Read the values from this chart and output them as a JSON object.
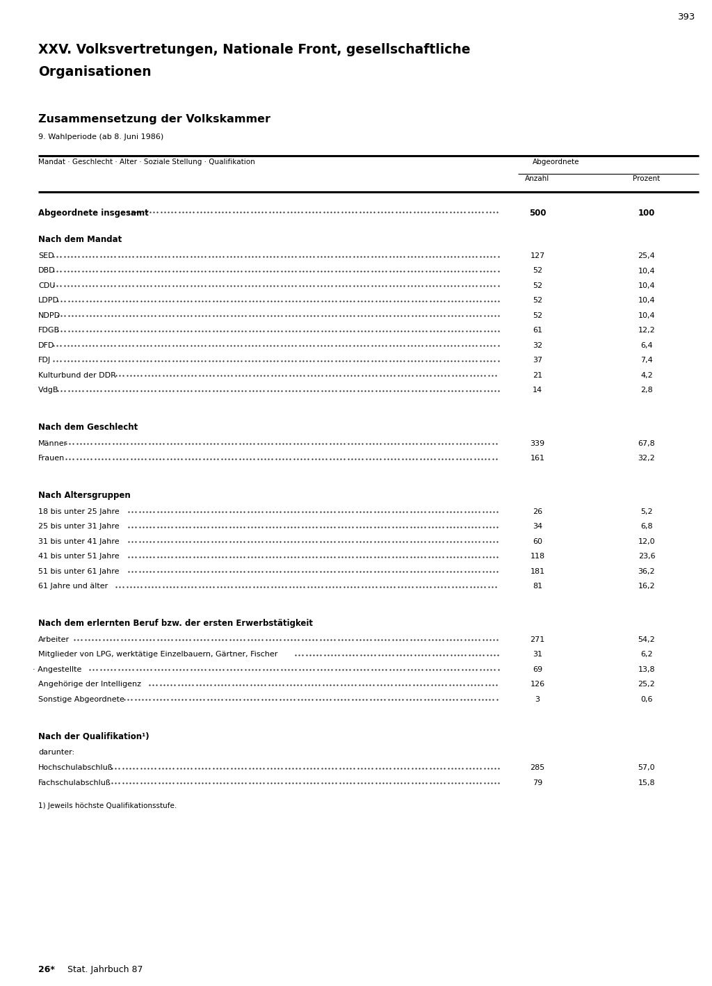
{
  "page_number": "393",
  "chapter_title_line1": "XXV. Volksvertretungen, Nationale Front, gesellschaftliche",
  "chapter_title_line2": "Organisationen",
  "section_title": "Zusammensetzung der Volkskammer",
  "section_subtitle": "9. Wahlperiode (ab 8. Juni 1986)",
  "col_header_left": "Mandat · Geschlecht · Alter · Soziale Stellung · Qualifikation",
  "col_header_group": "Abgeordnete",
  "col_header_anzahl": "Anzahl",
  "col_header_prozent": "Prozent",
  "total_label": "Abgeordnete insgesamt",
  "total_anzahl": "500",
  "total_prozent": "100",
  "sections": [
    {
      "heading": "Nach dem Mandat",
      "rows": [
        {
          "label": "SED",
          "anzahl": "127",
          "prozent": "25,4",
          "indent": false
        },
        {
          "label": "DBD",
          "anzahl": "52",
          "prozent": "10,4",
          "indent": false
        },
        {
          "label": "CDU",
          "anzahl": "52",
          "prozent": "10,4",
          "indent": false
        },
        {
          "label": "LDPD",
          "anzahl": "52",
          "prozent": "10,4",
          "indent": false
        },
        {
          "label": "NDPD",
          "anzahl": "52",
          "prozent": "10,4",
          "indent": false
        },
        {
          "label": "FDGB",
          "anzahl": "61",
          "prozent": "12,2",
          "indent": false
        },
        {
          "label": "DFD",
          "anzahl": "32",
          "prozent": "6,4",
          "indent": false
        },
        {
          "label": "FDJ",
          "anzahl": "37",
          "prozent": "7,4",
          "indent": false
        },
        {
          "label": "Kulturbund der DDR",
          "anzahl": "21",
          "prozent": "4,2",
          "indent": false
        },
        {
          "label": "VdgB",
          "anzahl": "14",
          "prozent": "2,8",
          "indent": false
        }
      ]
    },
    {
      "heading": "Nach dem Geschlecht",
      "rows": [
        {
          "label": "Männer",
          "anzahl": "339",
          "prozent": "67,8",
          "indent": false
        },
        {
          "label": "Frauen",
          "anzahl": "161",
          "prozent": "32,2",
          "indent": false
        }
      ]
    },
    {
      "heading": "Nach Altersgruppen",
      "rows": [
        {
          "label": "18 bis unter 25 Jahre",
          "anzahl": "26",
          "prozent": "5,2",
          "indent": false
        },
        {
          "label": "25 bis unter 31 Jahre",
          "anzahl": "34",
          "prozent": "6,8",
          "indent": false
        },
        {
          "label": "31 bis unter 41 Jahre",
          "anzahl": "60",
          "prozent": "12,0",
          "indent": false
        },
        {
          "label": "41 bis unter 51 Jahre",
          "anzahl": "118",
          "prozent": "23,6",
          "indent": false
        },
        {
          "label": "51 bis unter 61 Jahre",
          "anzahl": "181",
          "prozent": "36,2",
          "indent": false
        },
        {
          "label": "61 Jahre und älter",
          "anzahl": "81",
          "prozent": "16,2",
          "indent": false
        }
      ]
    },
    {
      "heading": "Nach dem erlernten Beruf bzw. der ersten Erwerbstätigkeit",
      "rows": [
        {
          "label": "Arbeiter",
          "anzahl": "271",
          "prozent": "54,2",
          "indent": false
        },
        {
          "label": "Mitglieder von LPG, werktätige Einzelbauern, Gärtner, Fischer",
          "anzahl": "31",
          "prozent": "6,2",
          "indent": false
        },
        {
          "label": "· Angestellte",
          "anzahl": "69",
          "prozent": "13,8",
          "indent": true
        },
        {
          "label": "Angehörige der Intelligenz",
          "anzahl": "126",
          "prozent": "25,2",
          "indent": false
        },
        {
          "label": "Sonstige Abgeordnete",
          "anzahl": "3",
          "prozent": "0,6",
          "indent": false
        }
      ]
    },
    {
      "heading": "Nach der Qualifikation¹)",
      "subheading": "darunter:",
      "rows": [
        {
          "label": "Hochschulabschluß",
          "anzahl": "285",
          "prozent": "57,0",
          "indent": false
        },
        {
          "label": "Fachschulabschluß",
          "anzahl": "79",
          "prozent": "15,8",
          "indent": false
        }
      ]
    }
  ],
  "footnote": "1) Jeweils höchste Qualifikationsstufe.",
  "footer_num": "26*",
  "footer_text": "Stat. Jahrbuch 87"
}
